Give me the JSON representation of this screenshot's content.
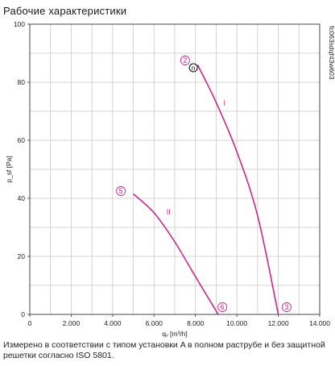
{
  "header": {
    "title": "Рабочие характеристики"
  },
  "footer": {
    "note": "Измерено в соответствии с типом установки A в полном раструбе и без защитной решетки согласно ISO 5801."
  },
  "chart_data": {
    "type": "line",
    "xlabel": "qᵥ [m³/h]",
    "ylabel": "p_sf [Pa]",
    "xlim": [
      0,
      14000
    ],
    "ylim": [
      0,
      100
    ],
    "x_ticks": [
      0,
      2000,
      4000,
      6000,
      8000,
      10000,
      12000,
      14000
    ],
    "x_tick_labels": [
      "0",
      "2.000",
      "4.000",
      "6.000",
      "8.000",
      "10.000",
      "12.000",
      "14.000"
    ],
    "y_ticks": [
      0,
      20,
      40,
      60,
      80,
      100
    ],
    "y_tick_labels": [
      "0",
      "20",
      "40",
      "60",
      "80",
      "100"
    ],
    "grid": true,
    "side_code": "fc063sdqf43w603",
    "colors": {
      "curve": "#c8288c",
      "grid": "#c8c8c8",
      "axis": "#333333"
    },
    "series": [
      {
        "name": "I",
        "x": [
          8100,
          9000,
          10000,
          11000,
          12000
        ],
        "y": [
          86,
          73,
          56,
          34,
          0
        ]
      },
      {
        "name": "II",
        "x": [
          5000,
          6000,
          7000,
          8000,
          9100
        ],
        "y": [
          41.5,
          35,
          25,
          13,
          0
        ]
      }
    ],
    "series_label_positions": [
      {
        "text": "I",
        "x": 9400,
        "y": 72
      },
      {
        "text": "II",
        "x": 6700,
        "y": 34.5
      }
    ],
    "points": [
      {
        "label": "2",
        "x": 7500,
        "y": 87.5
      },
      {
        "label": "3",
        "x": 12400,
        "y": 2.5
      },
      {
        "label": "5",
        "x": 4400,
        "y": 42.5
      },
      {
        "label": "6",
        "x": 9300,
        "y": 2.5
      }
    ],
    "operating_point": {
      "label": "n",
      "x": 7900,
      "y": 85
    }
  }
}
